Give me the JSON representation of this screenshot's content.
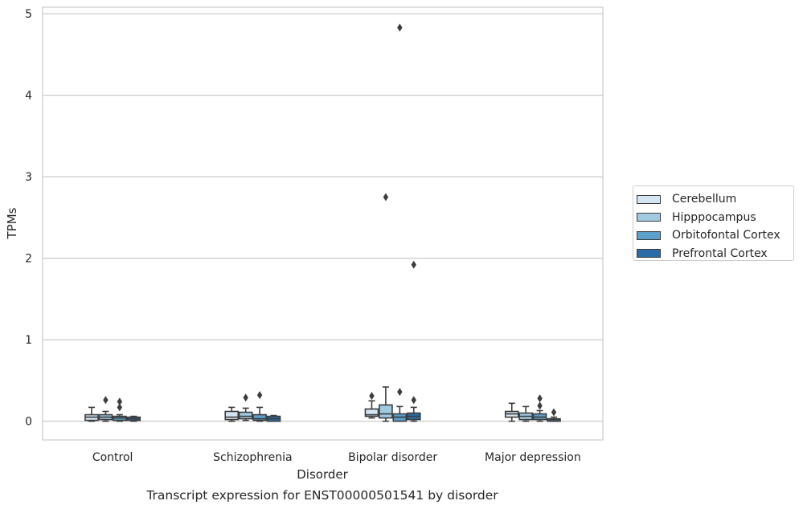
{
  "chart_data": {
    "type": "box",
    "caption": "Transcript expression for ENST00000501541 by disorder",
    "xlabel": "Disorder",
    "ylabel": "TPMs",
    "ylim": [
      -0.23,
      5.08
    ],
    "yticks": [
      0,
      1,
      2,
      3,
      4,
      5
    ],
    "grid": true,
    "legend_position": "right",
    "categories": [
      "Control",
      "Schizophrenia",
      "Bipolar disorder",
      "Major depression"
    ],
    "series": [
      {
        "name": "Cerebellum",
        "color": "#d3e4f3",
        "boxes": [
          {
            "whislo": 0.0,
            "q1": 0.01,
            "med": 0.05,
            "q3": 0.08,
            "whishi": 0.17,
            "fliers": []
          },
          {
            "whislo": 0.0,
            "q1": 0.02,
            "med": 0.05,
            "q3": 0.12,
            "whishi": 0.17,
            "fliers": []
          },
          {
            "whislo": 0.04,
            "q1": 0.06,
            "med": 0.08,
            "q3": 0.15,
            "whishi": 0.25,
            "fliers": [
              0.31
            ]
          },
          {
            "whislo": 0.0,
            "q1": 0.05,
            "med": 0.09,
            "q3": 0.12,
            "whishi": 0.22,
            "fliers": []
          }
        ]
      },
      {
        "name": "Hipppocampus",
        "color": "#a0c9e2",
        "boxes": [
          {
            "whislo": 0.0,
            "q1": 0.02,
            "med": 0.05,
            "q3": 0.08,
            "whishi": 0.12,
            "fliers": [
              0.26
            ]
          },
          {
            "whislo": 0.01,
            "q1": 0.03,
            "med": 0.06,
            "q3": 0.11,
            "whishi": 0.16,
            "fliers": [
              0.29
            ]
          },
          {
            "whislo": 0.0,
            "q1": 0.04,
            "med": 0.09,
            "q3": 0.2,
            "whishi": 0.42,
            "fliers": [
              2.75
            ]
          },
          {
            "whislo": 0.0,
            "q1": 0.02,
            "med": 0.06,
            "q3": 0.1,
            "whishi": 0.18,
            "fliers": []
          }
        ]
      },
      {
        "name": "Orbitofontal Cortex",
        "color": "#5c9fca",
        "boxes": [
          {
            "whislo": 0.0,
            "q1": 0.01,
            "med": 0.04,
            "q3": 0.06,
            "whishi": 0.08,
            "fliers": [
              0.17,
              0.24
            ]
          },
          {
            "whislo": 0.0,
            "q1": 0.01,
            "med": 0.03,
            "q3": 0.08,
            "whishi": 0.17,
            "fliers": [
              0.32
            ]
          },
          {
            "whislo": 0.0,
            "q1": 0.0,
            "med": 0.05,
            "q3": 0.09,
            "whishi": 0.18,
            "fliers": [
              0.36,
              4.83
            ]
          },
          {
            "whislo": 0.0,
            "q1": 0.02,
            "med": 0.05,
            "q3": 0.09,
            "whishi": 0.13,
            "fliers": [
              0.19,
              0.28
            ]
          }
        ]
      },
      {
        "name": "Prefrontal Cortex",
        "color": "#2a6ca8",
        "boxes": [
          {
            "whislo": 0.0,
            "q1": 0.01,
            "med": 0.03,
            "q3": 0.05,
            "whishi": 0.06,
            "fliers": []
          },
          {
            "whislo": 0.0,
            "q1": 0.0,
            "med": 0.03,
            "q3": 0.06,
            "whishi": 0.07,
            "fliers": []
          },
          {
            "whislo": 0.0,
            "q1": 0.02,
            "med": 0.06,
            "q3": 0.1,
            "whishi": 0.17,
            "fliers": [
              0.26,
              1.92
            ]
          },
          {
            "whislo": 0.0,
            "q1": 0.0,
            "med": 0.02,
            "q3": 0.03,
            "whishi": 0.05,
            "fliers": [
              0.11
            ]
          }
        ]
      }
    ]
  }
}
